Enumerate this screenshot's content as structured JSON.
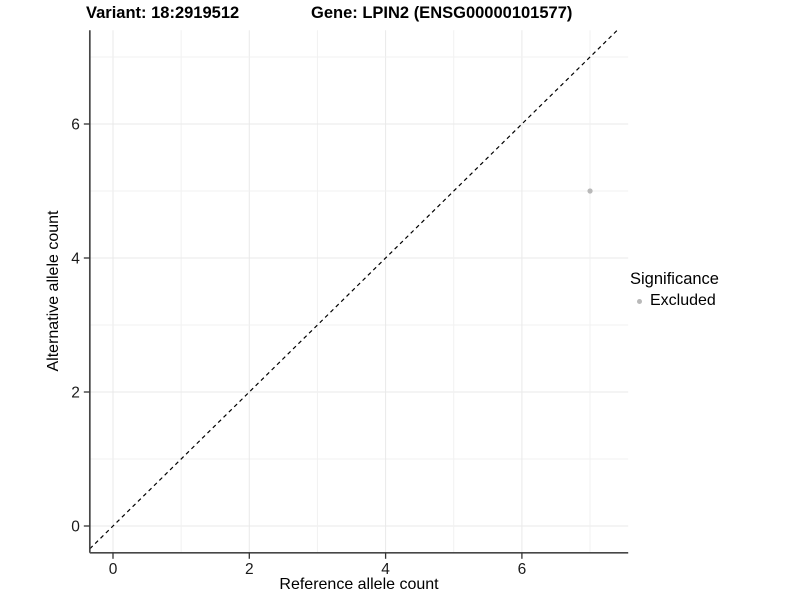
{
  "header": {
    "title_variant": "Variant: 18:2919512",
    "title_gene": "Gene: LPIN2 (ENSG00000101577)"
  },
  "chart_data": {
    "type": "scatter",
    "titles": [
      "Variant: 18:2919512",
      "Gene: LPIN2 (ENSG00000101577)"
    ],
    "xlabel": "Reference allele count",
    "ylabel": "Alternative allele count",
    "x_ticks": [
      0,
      2,
      4,
      6
    ],
    "y_ticks": [
      0,
      2,
      4,
      6
    ],
    "xlim": [
      -0.34,
      7.56
    ],
    "ylim": [
      -0.4,
      7.4
    ],
    "grid": {
      "show": true,
      "integer_gridlines_range": [
        0,
        7
      ],
      "legend_position": "right"
    },
    "series": [
      {
        "name": "Excluded",
        "color": "#b9b9b9",
        "points": [
          {
            "x": 7,
            "y": 5
          }
        ]
      }
    ],
    "reference_line": {
      "style": "dashed",
      "slope": 1,
      "intercept": 0,
      "color": "#000000"
    },
    "legend": {
      "title": "Significance",
      "entries": [
        {
          "label": "Excluded",
          "color": "#b9b9b9"
        }
      ]
    }
  },
  "colors": {
    "background": "#ffffff",
    "grid_major": "#e9e9e9",
    "grid_minor": "#f1f1f1",
    "axis_line": "#474747",
    "tick_mark": "#333333",
    "tick_label": "#1a1a1a",
    "point": "#b9b9b9"
  }
}
